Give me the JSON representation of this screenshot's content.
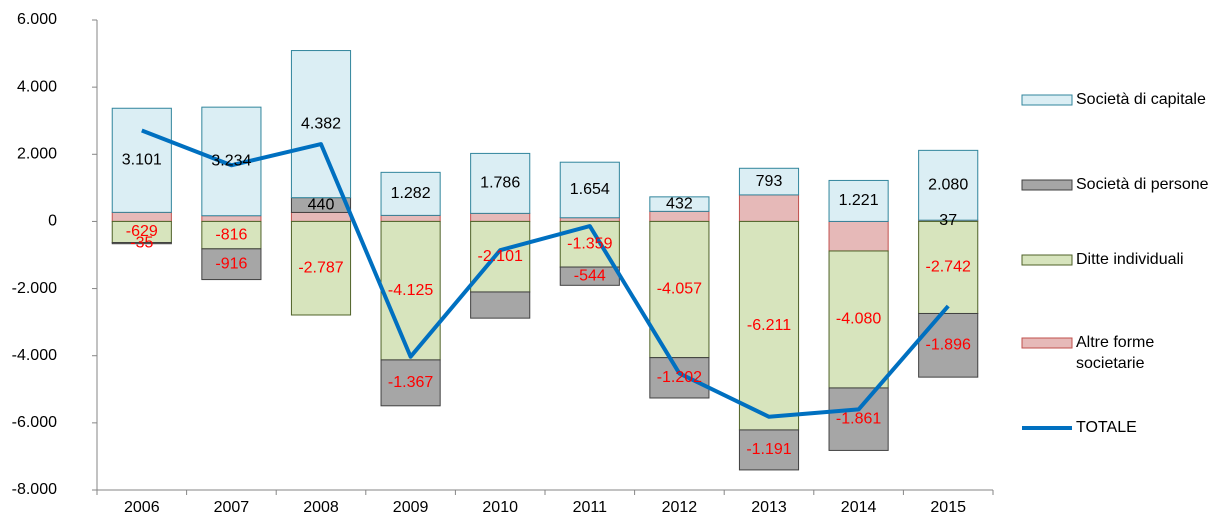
{
  "chart_data": {
    "type": "bar",
    "stacked": true,
    "categories": [
      "2006",
      "2007",
      "2008",
      "2009",
      "2010",
      "2011",
      "2012",
      "2013",
      "2014",
      "2015"
    ],
    "series": [
      {
        "name": "Società di capitale",
        "type": "bar",
        "color": "#dbeef4",
        "edge": "#31859c",
        "values": [
          3101,
          3234,
          4382,
          1282,
          1786,
          1654,
          432,
          793,
          1221,
          2080
        ],
        "value_labels": [
          "3.101",
          "3.234",
          "4.382",
          "1.282",
          "1.786",
          "1.654",
          "432",
          "793",
          "1.221",
          "2.080"
        ]
      },
      {
        "name": "Società di persone",
        "type": "bar",
        "color": "#a6a6a6",
        "edge": "#404040",
        "values": [
          -35,
          -916,
          440,
          -1367,
          -780,
          -544,
          -1202,
          -1191,
          -1861,
          -1896
        ],
        "value_labels": [
          "-35",
          "-916",
          "440",
          "-1.367",
          null,
          "-544",
          "-1.202",
          "-1.191",
          "-1.861",
          "-1.896"
        ]
      },
      {
        "name": "Ditte individuali",
        "type": "bar",
        "color": "#d7e4bd",
        "edge": "#4f6228",
        "values": [
          -629,
          -816,
          -2787,
          -4125,
          -2101,
          -1359,
          -4057,
          -6211,
          -4080,
          -2742
        ],
        "value_labels": [
          "-629",
          "-816",
          "-2.787",
          "-4.125",
          "-2.101",
          "-1.359",
          "-4.057",
          "-6.211",
          "-4.080",
          "-2.742"
        ]
      },
      {
        "name": "Altre forme societarie",
        "type": "bar",
        "color": "#e6b9b8",
        "edge": "#c0504d",
        "values": [
          270,
          170,
          268,
          180,
          240,
          110,
          300,
          790,
          -880,
          37
        ],
        "value_labels": [
          null,
          null,
          null,
          null,
          null,
          null,
          null,
          null,
          null,
          "37"
        ]
      },
      {
        "name": "TOTALE",
        "type": "line",
        "color": "#0070c0",
        "values": [
          2707,
          1672,
          2303,
          -4030,
          -855,
          -139,
          -4527,
          -5819,
          -5600,
          -2520
        ]
      }
    ],
    "ylim": [
      -8000,
      6000
    ],
    "yticks": [
      {
        "value": 6000,
        "label": "6.000"
      },
      {
        "value": 4000,
        "label": "4.000"
      },
      {
        "value": 2000,
        "label": "2.000"
      },
      0,
      {
        "value": -2000,
        "label": "-2.000"
      },
      {
        "value": -4000,
        "label": "-4.000"
      },
      {
        "value": -6000,
        "label": "-6.000"
      },
      {
        "value": -8000,
        "label": "-8.000"
      }
    ],
    "grid": false,
    "legend": "right"
  }
}
